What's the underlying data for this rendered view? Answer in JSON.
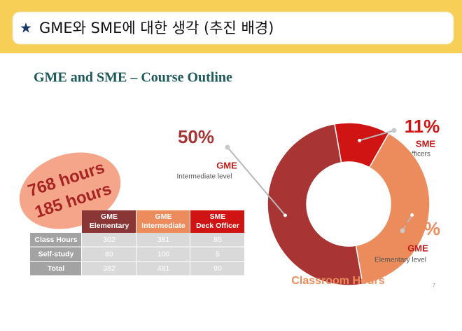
{
  "header": {
    "star": "★",
    "title": "GME와 SME에 대한 생각 (추진 배경)"
  },
  "slide_title": "GME and SME – Course Outline",
  "badge": [
    "768 hours",
    "185 hours"
  ],
  "table": {
    "columns": [
      [
        "GME",
        "Elementary"
      ],
      [
        "GME",
        "Intermediate"
      ],
      [
        "SME",
        "Deck Officer"
      ]
    ],
    "column_colors": [
      "#8b3636",
      "#ec8c5c",
      "#d01414"
    ],
    "rows": [
      {
        "label": "Class Hours",
        "cells": [
          302,
          381,
          85
        ]
      },
      {
        "label": "Self-study",
        "cells": [
          80,
          100,
          5
        ]
      },
      {
        "label": "Total",
        "cells": [
          382,
          481,
          90
        ]
      }
    ]
  },
  "chart_data": {
    "type": "donut",
    "title": "Classroom Hours",
    "categories": [
      "SME",
      "GME",
      "GME"
    ],
    "descriptions": [
      "For deck officers",
      "Elementary level",
      "Intermediate level"
    ],
    "values": [
      11,
      39,
      50
    ],
    "value_labels": [
      "11%",
      "39%",
      "50%"
    ],
    "colors": [
      "#d01414",
      "#ec8c5c",
      "#a83434"
    ]
  },
  "page_number": "7"
}
